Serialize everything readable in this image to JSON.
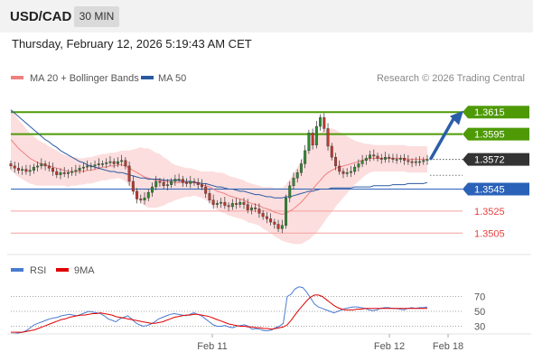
{
  "header": {
    "symbol": "USD/CAD",
    "timeframe": "30 MIN"
  },
  "datetime": "Thursday, February 12, 2026 5:19:43 AM CET",
  "legend": {
    "ma20_label": "MA 20 + Bollinger Bands",
    "ma50_label": "MA 50",
    "copyright": "Research © 2026 Trading Central",
    "rsi_label": "RSI",
    "ma9_label": "9MA"
  },
  "colors": {
    "resistance": "#4e9a06",
    "support": "#2a62b8",
    "target": "#e84040",
    "ma20": "#f08080",
    "band": "#fbd3d3",
    "ma50": "#2a5aa0",
    "candle_up": "#2e8b2e",
    "candle_down": "#c0392b",
    "rsi": "#4a7bd0",
    "ma9": "#e00000",
    "arrow": "#2a5ea8",
    "current": "#333333"
  },
  "chart_data": [
    {
      "type": "candlestick",
      "title": "",
      "xlabel": "",
      "ylabel": "",
      "ylim": [
        1.3497,
        1.3625
      ],
      "x_ticks": [
        "Feb 11",
        "Feb 12",
        "Feb 18"
      ],
      "levels": [
        {
          "value": 1.3615,
          "label": "1.3615",
          "kind": "resistance"
        },
        {
          "value": 1.3595,
          "label": "1.3595",
          "kind": "resistance"
        },
        {
          "value": 1.3572,
          "label": "1.3572",
          "kind": "current"
        },
        {
          "value": 1.3545,
          "label": "1.3545",
          "kind": "support"
        },
        {
          "value": 1.3525,
          "label": "1.3525",
          "kind": "target"
        },
        {
          "value": 1.3505,
          "label": "1.3505",
          "kind": "target"
        }
      ],
      "close": [
        1.3566,
        1.3564,
        1.3562,
        1.3563,
        1.3561,
        1.3562,
        1.3565,
        1.3566,
        1.3568,
        1.3566,
        1.3564,
        1.3561,
        1.3558,
        1.356,
        1.3559,
        1.356,
        1.3561,
        1.3562,
        1.3564,
        1.3565,
        1.3566,
        1.3566,
        1.3567,
        1.3568,
        1.3568,
        1.3569,
        1.357,
        1.3568,
        1.357,
        1.3571,
        1.3566,
        1.3552,
        1.3543,
        1.3536,
        1.3535,
        1.3537,
        1.3542,
        1.3547,
        1.3552,
        1.3551,
        1.3548,
        1.3549,
        1.3552,
        1.3554,
        1.3554,
        1.3551,
        1.355,
        1.3552,
        1.3551,
        1.3549,
        1.3547,
        1.3541,
        1.3535,
        1.3531,
        1.3532,
        1.3533,
        1.353,
        1.3529,
        1.3532,
        1.3531,
        1.3533,
        1.3531,
        1.3526,
        1.3528,
        1.3527,
        1.3523,
        1.352,
        1.3518,
        1.3515,
        1.3513,
        1.3509,
        1.3512,
        1.3537,
        1.3548,
        1.3555,
        1.356,
        1.3568,
        1.358,
        1.3596,
        1.3585,
        1.3602,
        1.361,
        1.36,
        1.3584,
        1.3574,
        1.3566,
        1.3561,
        1.3559,
        1.356,
        1.3561,
        1.3565,
        1.3568,
        1.3571,
        1.3573,
        1.3576,
        1.3575,
        1.3573,
        1.3572,
        1.3574,
        1.3573,
        1.3572,
        1.3572,
        1.3573,
        1.3571,
        1.357,
        1.3569,
        1.357,
        1.357,
        1.3571,
        1.3572
      ],
      "ma20": [
        1.359,
        1.3586,
        1.3582,
        1.3579,
        1.3576,
        1.3573,
        1.3571,
        1.3569,
        1.3568,
        1.3567,
        1.3566,
        1.3565,
        1.3564,
        1.3563,
        1.3562,
        1.3561,
        1.3561,
        1.3561,
        1.3561,
        1.3561,
        1.3562,
        1.3562,
        1.3563,
        1.3564,
        1.3565,
        1.3565,
        1.3566,
        1.3566,
        1.3567,
        1.3567,
        1.3566,
        1.3564,
        1.3562,
        1.356,
        1.3558,
        1.3556,
        1.3555,
        1.3554,
        1.3553,
        1.3553,
        1.3552,
        1.3552,
        1.3551,
        1.3551,
        1.3551,
        1.3551,
        1.3551,
        1.3551,
        1.3551,
        1.355,
        1.3549,
        1.3548,
        1.3547,
        1.3545,
        1.3543,
        1.3542,
        1.3541,
        1.3539,
        1.3538,
        1.3537,
        1.3536,
        1.3535,
        1.3533,
        1.3532,
        1.3531,
        1.353,
        1.3528,
        1.3527,
        1.3526,
        1.3524,
        1.3523,
        1.3522,
        1.3523,
        1.3525,
        1.3527,
        1.353,
        1.3533,
        1.3537,
        1.3541,
        1.3545,
        1.3549,
        1.3553,
        1.3557,
        1.356,
        1.3562,
        1.3564,
        1.3565,
        1.3566,
        1.3567,
        1.3568,
        1.3569,
        1.357,
        1.3571,
        1.3572,
        1.3573,
        1.3573,
        1.3573,
        1.3573,
        1.3573,
        1.3573,
        1.3573,
        1.3573,
        1.3573,
        1.3573,
        1.3572,
        1.3572,
        1.3572,
        1.3572,
        1.3572,
        1.3572
      ],
      "ma50": [
        1.3617,
        1.3614,
        1.3611,
        1.3608,
        1.3605,
        1.3602,
        1.3599,
        1.3596,
        1.3593,
        1.359,
        1.3588,
        1.3585,
        1.3583,
        1.358,
        1.3578,
        1.3576,
        1.3574,
        1.3572,
        1.357,
        1.3569,
        1.3567,
        1.3566,
        1.3565,
        1.3564,
        1.3563,
        1.3562,
        1.3561,
        1.3561,
        1.356,
        1.356,
        1.3559,
        1.3558,
        1.3557,
        1.3556,
        1.3555,
        1.3555,
        1.3554,
        1.3554,
        1.3554,
        1.3554,
        1.3553,
        1.3553,
        1.3553,
        1.3553,
        1.3553,
        1.3552,
        1.3552,
        1.3552,
        1.3551,
        1.3551,
        1.355,
        1.355,
        1.3549,
        1.3548,
        1.3547,
        1.3547,
        1.3546,
        1.3545,
        1.3545,
        1.3544,
        1.3543,
        1.3543,
        1.3542,
        1.3541,
        1.354,
        1.354,
        1.3539,
        1.3538,
        1.3538,
        1.3537,
        1.3537,
        1.3537,
        1.3538,
        1.3538,
        1.3539,
        1.354,
        1.3541,
        1.3542,
        1.3543,
        1.3543,
        1.3544,
        1.3545,
        1.3545,
        1.3545,
        1.3546,
        1.3546,
        1.3546,
        1.3546,
        1.3546,
        1.3546,
        1.3547,
        1.3547,
        1.3547,
        1.3547,
        1.3547,
        1.3548,
        1.3548,
        1.3548,
        1.3548,
        1.3548,
        1.3549,
        1.3549,
        1.3549,
        1.3549,
        1.355,
        1.355,
        1.355,
        1.355,
        1.355,
        1.3551
      ],
      "band_width": [
        0.0028,
        0.0027,
        0.0026,
        0.0025,
        0.0024,
        0.0023,
        0.0022,
        0.0021,
        0.002,
        0.0019,
        0.0018,
        0.0017,
        0.0016,
        0.0015,
        0.0014,
        0.0014,
        0.0013,
        0.0013,
        0.0012,
        0.0012,
        0.0012,
        0.0012,
        0.0012,
        0.0012,
        0.0012,
        0.0012,
        0.0012,
        0.0012,
        0.0012,
        0.0013,
        0.0014,
        0.0016,
        0.0019,
        0.0022,
        0.0025,
        0.0026,
        0.0027,
        0.0026,
        0.0025,
        0.0024,
        0.0022,
        0.002,
        0.0018,
        0.0016,
        0.0015,
        0.0014,
        0.0013,
        0.0013,
        0.0012,
        0.0012,
        0.0012,
        0.0013,
        0.0014,
        0.0016,
        0.0017,
        0.0018,
        0.0018,
        0.0018,
        0.0018,
        0.0018,
        0.0018,
        0.0018,
        0.0018,
        0.0018,
        0.0018,
        0.0018,
        0.0019,
        0.002,
        0.0021,
        0.0022,
        0.0023,
        0.0024,
        0.0026,
        0.0029,
        0.0032,
        0.0035,
        0.0038,
        0.004,
        0.0042,
        0.0043,
        0.0044,
        0.0043,
        0.0042,
        0.004,
        0.0038,
        0.0035,
        0.0032,
        0.0029,
        0.0026,
        0.0023,
        0.002,
        0.0018,
        0.0016,
        0.0014,
        0.0013,
        0.0012,
        0.0012,
        0.0012,
        0.0012,
        0.0012,
        0.0012,
        0.0012,
        0.0012,
        0.0012,
        0.0012,
        0.0012,
        0.0012,
        0.0012,
        0.0012,
        0.0012
      ]
    },
    {
      "type": "line",
      "title": "",
      "xlabel": "",
      "ylabel": "",
      "ylim": [
        10,
        90
      ],
      "y_ticks": [
        70,
        50,
        30
      ],
      "series": [
        {
          "name": "RSI",
          "values": [
            20,
            20,
            21,
            22,
            24,
            28,
            32,
            34,
            36,
            38,
            40,
            41,
            42,
            44,
            45,
            46,
            45,
            44,
            46,
            48,
            50,
            49,
            48,
            47,
            44,
            40,
            38,
            36,
            40,
            42,
            44,
            40,
            35,
            32,
            30,
            31,
            33,
            36,
            40,
            42,
            44,
            46,
            47,
            46,
            45,
            44,
            46,
            48,
            46,
            44,
            40,
            36,
            32,
            30,
            30,
            31,
            29,
            28,
            30,
            31,
            32,
            30,
            26,
            27,
            26,
            24,
            24,
            25,
            28,
            30,
            34,
            70,
            73,
            80,
            83,
            82,
            76,
            68,
            60,
            56,
            54,
            52,
            50,
            48,
            50,
            52,
            54,
            55,
            56,
            56,
            55,
            54,
            52,
            51,
            52,
            54,
            55,
            55,
            54,
            54,
            53,
            52,
            54,
            55,
            54,
            55,
            55,
            56
          ]
        },
        {
          "name": "9MA",
          "values": [
            22,
            22,
            22,
            22,
            23,
            24,
            25,
            27,
            29,
            31,
            33,
            35,
            37,
            39,
            40,
            42,
            43,
            44,
            45,
            45,
            46,
            47,
            47,
            48,
            47,
            46,
            45,
            43,
            42,
            41,
            40,
            39,
            38,
            37,
            36,
            35,
            34,
            34,
            35,
            36,
            38,
            40,
            42,
            43,
            44,
            45,
            45,
            46,
            46,
            45,
            44,
            43,
            41,
            39,
            37,
            35,
            33,
            32,
            31,
            30,
            30,
            29,
            29,
            28,
            28,
            27,
            27,
            26,
            27,
            28,
            29,
            32,
            38,
            45,
            52,
            58,
            64,
            69,
            72,
            72,
            70,
            66,
            62,
            58,
            55,
            53,
            52,
            52,
            52,
            53,
            53,
            54,
            54,
            54,
            54,
            54,
            54,
            54,
            54,
            54,
            54,
            54,
            54,
            54,
            54,
            54,
            54,
            54
          ]
        }
      ]
    }
  ]
}
